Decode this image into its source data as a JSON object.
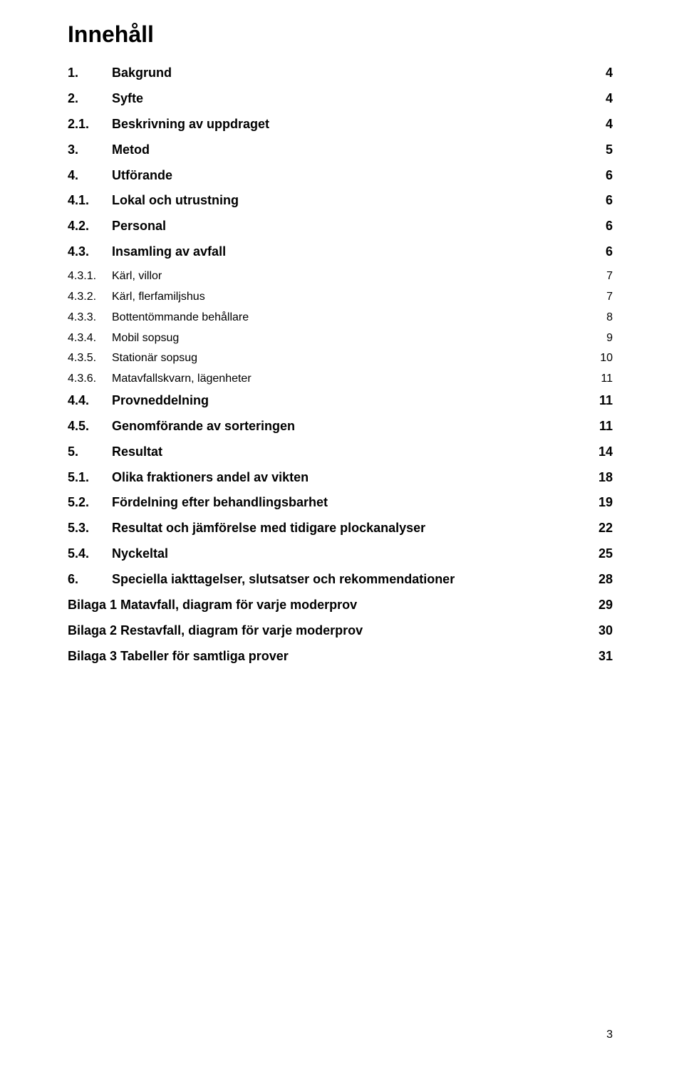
{
  "title": "Innehåll",
  "page_number": "3",
  "background_color": "#ffffff",
  "text_color": "#000000",
  "font_family": "Arial",
  "title_fontsize": 32,
  "lvl1_fontsize": 18,
  "lvl2_fontsize": 18,
  "lvl3_fontsize": 16,
  "toc": [
    {
      "level": 1,
      "num": "1.",
      "label": "Bakgrund",
      "page": "4"
    },
    {
      "level": 1,
      "num": "2.",
      "label": "Syfte",
      "page": "4"
    },
    {
      "level": 2,
      "num": "2.1.",
      "label": "Beskrivning av uppdraget",
      "page": "4"
    },
    {
      "level": 1,
      "num": "3.",
      "label": "Metod",
      "page": "5"
    },
    {
      "level": 1,
      "num": "4.",
      "label": "Utförande",
      "page": "6"
    },
    {
      "level": 2,
      "num": "4.1.",
      "label": "Lokal och utrustning",
      "page": "6"
    },
    {
      "level": 2,
      "num": "4.2.",
      "label": "Personal",
      "page": "6"
    },
    {
      "level": 2,
      "num": "4.3.",
      "label": "Insamling av avfall",
      "page": "6"
    },
    {
      "level": 3,
      "num": "4.3.1.",
      "label": "Kärl, villor",
      "page": "7"
    },
    {
      "level": 3,
      "num": "4.3.2.",
      "label": "Kärl, flerfamiljshus",
      "page": "7"
    },
    {
      "level": 3,
      "num": "4.3.3.",
      "label": "Bottentömmande behållare",
      "page": "8"
    },
    {
      "level": 3,
      "num": "4.3.4.",
      "label": "Mobil sopsug",
      "page": "9"
    },
    {
      "level": 3,
      "num": "4.3.5.",
      "label": "Stationär sopsug",
      "page": "10"
    },
    {
      "level": 3,
      "num": "4.3.6.",
      "label": "Matavfallskvarn, lägenheter",
      "page": "11"
    },
    {
      "level": 2,
      "num": "4.4.",
      "label": "Provneddelning",
      "page": "11"
    },
    {
      "level": 2,
      "num": "4.5.",
      "label": "Genomförande av sorteringen",
      "page": "11"
    },
    {
      "level": 1,
      "num": "5.",
      "label": "Resultat",
      "page": "14"
    },
    {
      "level": 2,
      "num": "5.1.",
      "label": "Olika fraktioners andel av vikten",
      "page": "18"
    },
    {
      "level": 2,
      "num": "5.2.",
      "label": "Fördelning efter behandlingsbarhet",
      "page": "19"
    },
    {
      "level": 2,
      "num": "5.3.",
      "label": "Resultat och jämförelse med tidigare plockanalyser",
      "page": "22"
    },
    {
      "level": 2,
      "num": "5.4.",
      "label": "Nyckeltal",
      "page": "25"
    },
    {
      "level": 1,
      "num": "6.",
      "label": "Speciella iakttagelser, slutsatser och rekommendationer",
      "page": "28"
    },
    {
      "level": "appendix",
      "num": "",
      "label": "Bilaga 1 Matavfall, diagram för varje moderprov",
      "page": "29"
    },
    {
      "level": "appendix",
      "num": "",
      "label": "Bilaga 2 Restavfall, diagram för varje moderprov",
      "page": "30"
    },
    {
      "level": "appendix",
      "num": "",
      "label": "Bilaga 3 Tabeller för samtliga prover",
      "page": "31"
    }
  ]
}
